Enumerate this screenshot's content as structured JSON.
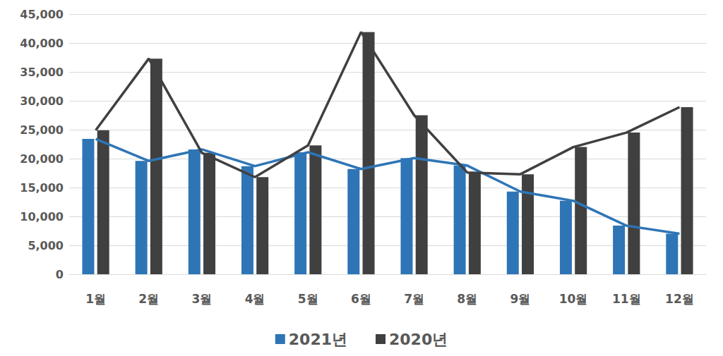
{
  "chart_data": {
    "type": "bar-line",
    "categories": [
      "1월",
      "2월",
      "3월",
      "4월",
      "5월",
      "6월",
      "7월",
      "8월",
      "9월",
      "10월",
      "11월",
      "12월"
    ],
    "series": [
      {
        "name": "2021년",
        "color": "#2e75b6",
        "type": "bar-line",
        "values": [
          23400,
          19600,
          21600,
          18700,
          21100,
          18200,
          20100,
          18800,
          14300,
          12700,
          8400,
          7000
        ]
      },
      {
        "name": "2020년",
        "color": "#404040",
        "type": "bar-line",
        "values": [
          24900,
          37300,
          21000,
          16800,
          22300,
          41900,
          27500,
          17600,
          17300,
          22000,
          24500,
          28900
        ]
      }
    ],
    "ylim": [
      0,
      45000
    ],
    "yticks": [
      0,
      {
        "value": 5000,
        "label": "5,000"
      },
      {
        "value": 10000,
        "label": "10,000"
      },
      {
        "value": 15000,
        "label": "15,000"
      },
      {
        "value": 20000,
        "label": "20,000"
      },
      {
        "value": 25000,
        "label": "25,000"
      },
      {
        "value": 30000,
        "label": "30,000"
      },
      {
        "value": 35000,
        "label": "35,000"
      },
      {
        "value": 40000,
        "label": "40,000"
      },
      {
        "value": 45000,
        "label": "45,000"
      }
    ],
    "grid": true,
    "legend": "bottom"
  }
}
